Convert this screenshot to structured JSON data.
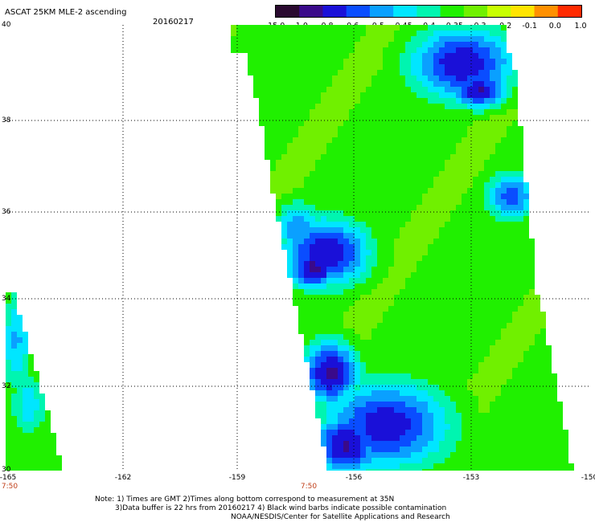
{
  "header": {
    "title": "ASCAT 25KM MLE-2 ascending",
    "date": "20160217"
  },
  "legend": {
    "labels": [
      "-15.0",
      "-1.0",
      "-0.8",
      "-0.6",
      "-0.5",
      "-0.45",
      "-0.4",
      "-0.35",
      "-0.3",
      "-0.2",
      "-0.1",
      "0.0",
      "1.0"
    ],
    "colors": [
      "#2a0a30",
      "#3a0a8a",
      "#1a10d8",
      "#0a4dff",
      "#0aa0ff",
      "#00e6ff",
      "#00f5b0",
      "#20f000",
      "#70f000",
      "#c8ff00",
      "#ffe400",
      "#ff9000",
      "#ff2a00"
    ]
  },
  "axes": {
    "x_ticks": [
      "-165",
      "-162",
      "-159",
      "-156",
      "-153",
      "-150"
    ],
    "y_ticks": [
      "40",
      "38",
      "36",
      "34",
      "32",
      "30"
    ],
    "times": [
      "7:50",
      "7:50"
    ]
  },
  "notes": {
    "line1": "Note: 1) Times are GMT 2)Times along bottom correspond to measurement at 35N",
    "line2": "3)Data buffer is 22 hrs from 20160217 4) Black wind barbs indicate possible contamination",
    "line3": "NOAA/NESDIS/Center for Satellite Applications and Research"
  }
}
